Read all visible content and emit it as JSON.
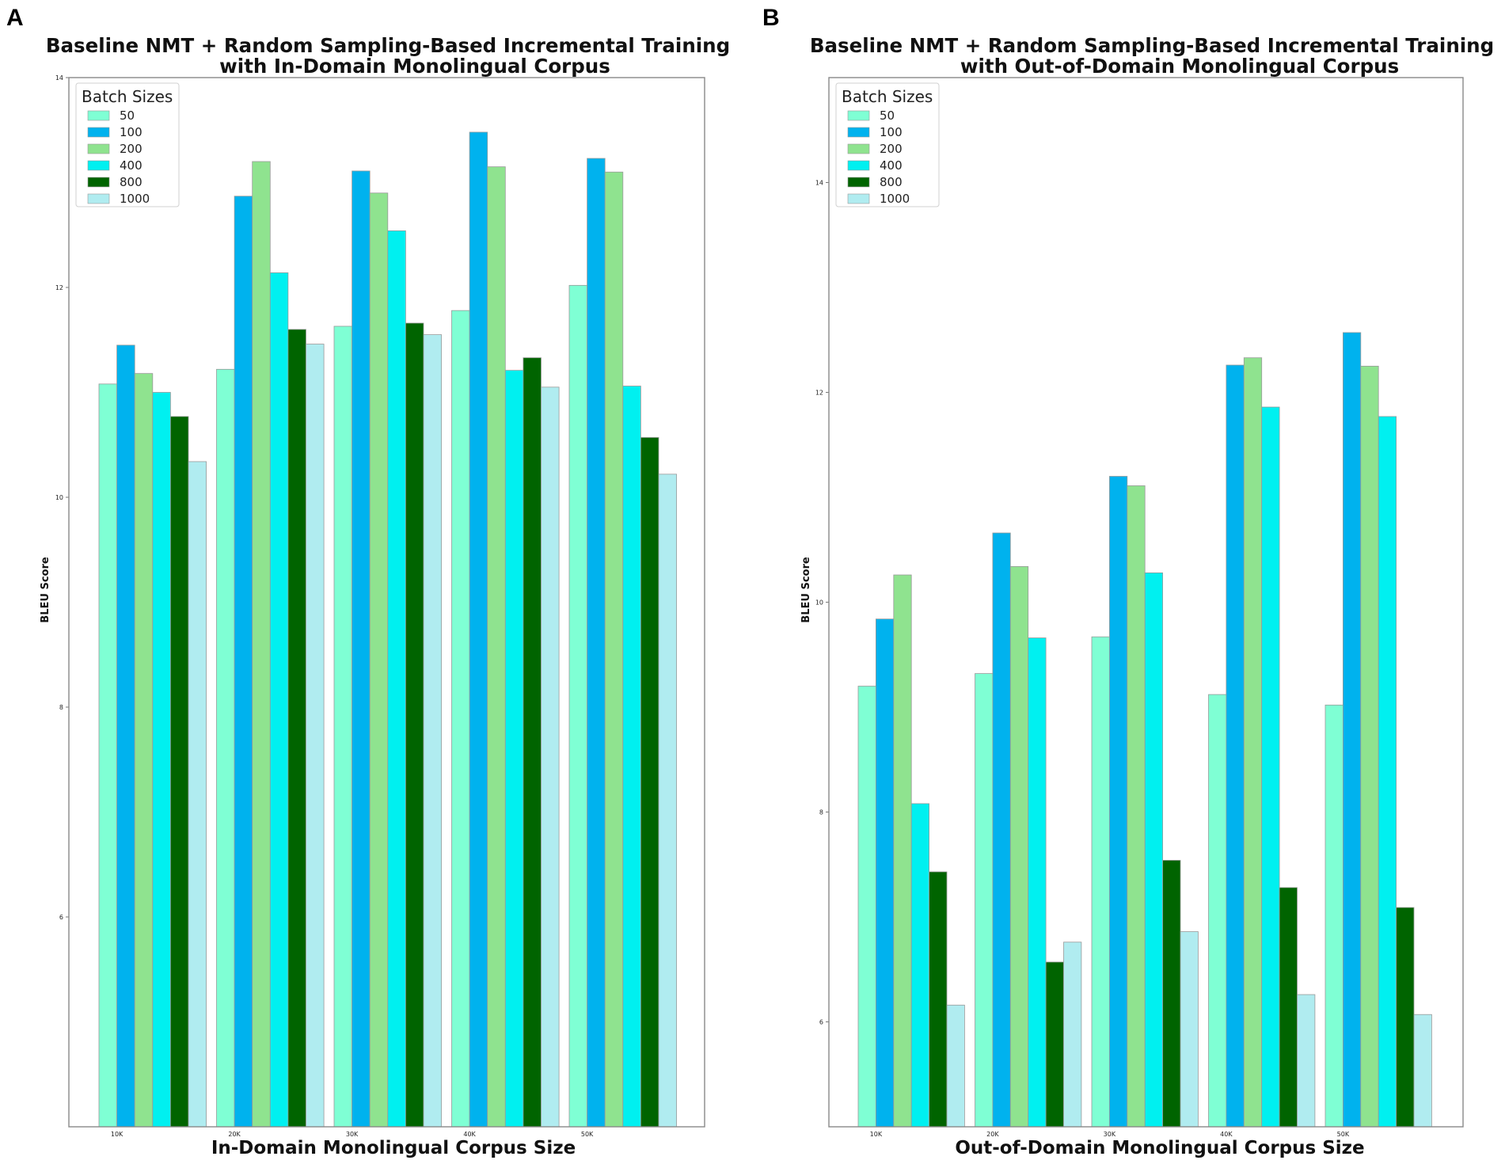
{
  "colors": {
    "50": "#7fffd4",
    "100": "#00b2ee",
    "200": "#8fe38f",
    "400": "#00f0f0",
    "800": "#006400",
    "1000": "#b0ecf0"
  },
  "chart_data": [
    {
      "panel": "A",
      "type": "bar",
      "title": [
        "Baseline NMT + Random Sampling-Based Incremental Training",
        "with In-Domain Monolingual Corpus"
      ],
      "xlabel": "In-Domain Monolingual Corpus Size",
      "ylabel": "BLEU Score",
      "ylim": [
        4.0,
        14.0
      ],
      "yticks": [
        {
          "value": 6,
          "label": "6"
        },
        {
          "value": 8,
          "label": "8"
        },
        {
          "value": 10,
          "label": "10"
        },
        {
          "value": 12,
          "label": "12"
        },
        {
          "value": 14,
          "label": "14"
        }
      ],
      "categories": [
        "10K",
        "20K",
        "30K",
        "40K",
        "50K"
      ],
      "legend_title": "Batch Sizes",
      "legend_position": "top-left",
      "series": [
        {
          "name": "50",
          "values": [
            11.08,
            11.22,
            11.63,
            11.78,
            12.02
          ]
        },
        {
          "name": "100",
          "values": [
            11.45,
            12.87,
            13.11,
            13.48,
            13.23
          ]
        },
        {
          "name": "200",
          "values": [
            11.18,
            13.2,
            12.9,
            13.15,
            13.1
          ]
        },
        {
          "name": "400",
          "values": [
            11.0,
            12.14,
            12.54,
            11.21,
            11.06
          ]
        },
        {
          "name": "800",
          "values": [
            10.77,
            11.6,
            11.66,
            11.33,
            10.57
          ]
        },
        {
          "name": "1000",
          "values": [
            10.34,
            11.46,
            11.55,
            11.05,
            10.22
          ]
        }
      ]
    },
    {
      "panel": "B",
      "type": "bar",
      "title": [
        "Baseline NMT + Random Sampling-Based Incremental Training",
        "with Out-of-Domain Monolingual Corpus"
      ],
      "xlabel": "Out-of-Domain Monolingual Corpus Size",
      "ylabel": "BLEU Score",
      "ylim": [
        5.0,
        15.0
      ],
      "yticks": [
        {
          "value": 6,
          "label": "6"
        },
        {
          "value": 8,
          "label": "8"
        },
        {
          "value": 10,
          "label": "10"
        },
        {
          "value": 12,
          "label": "12"
        },
        {
          "value": 14,
          "label": "14"
        }
      ],
      "categories": [
        "10K",
        "20K",
        "30K",
        "40K",
        "50K"
      ],
      "legend_title": "Batch Sizes",
      "legend_position": "top-left",
      "series": [
        {
          "name": "50",
          "values": [
            9.2,
            9.32,
            9.67,
            9.12,
            9.02
          ]
        },
        {
          "name": "100",
          "values": [
            9.84,
            10.66,
            11.2,
            12.26,
            12.57
          ]
        },
        {
          "name": "200",
          "values": [
            10.26,
            10.34,
            11.11,
            12.33,
            12.25
          ]
        },
        {
          "name": "400",
          "values": [
            8.08,
            9.66,
            10.28,
            11.86,
            11.77
          ]
        },
        {
          "name": "800",
          "values": [
            7.43,
            6.57,
            7.54,
            7.28,
            7.09
          ]
        },
        {
          "name": "1000",
          "values": [
            6.16,
            6.76,
            6.86,
            6.26,
            6.07
          ]
        }
      ]
    }
  ]
}
